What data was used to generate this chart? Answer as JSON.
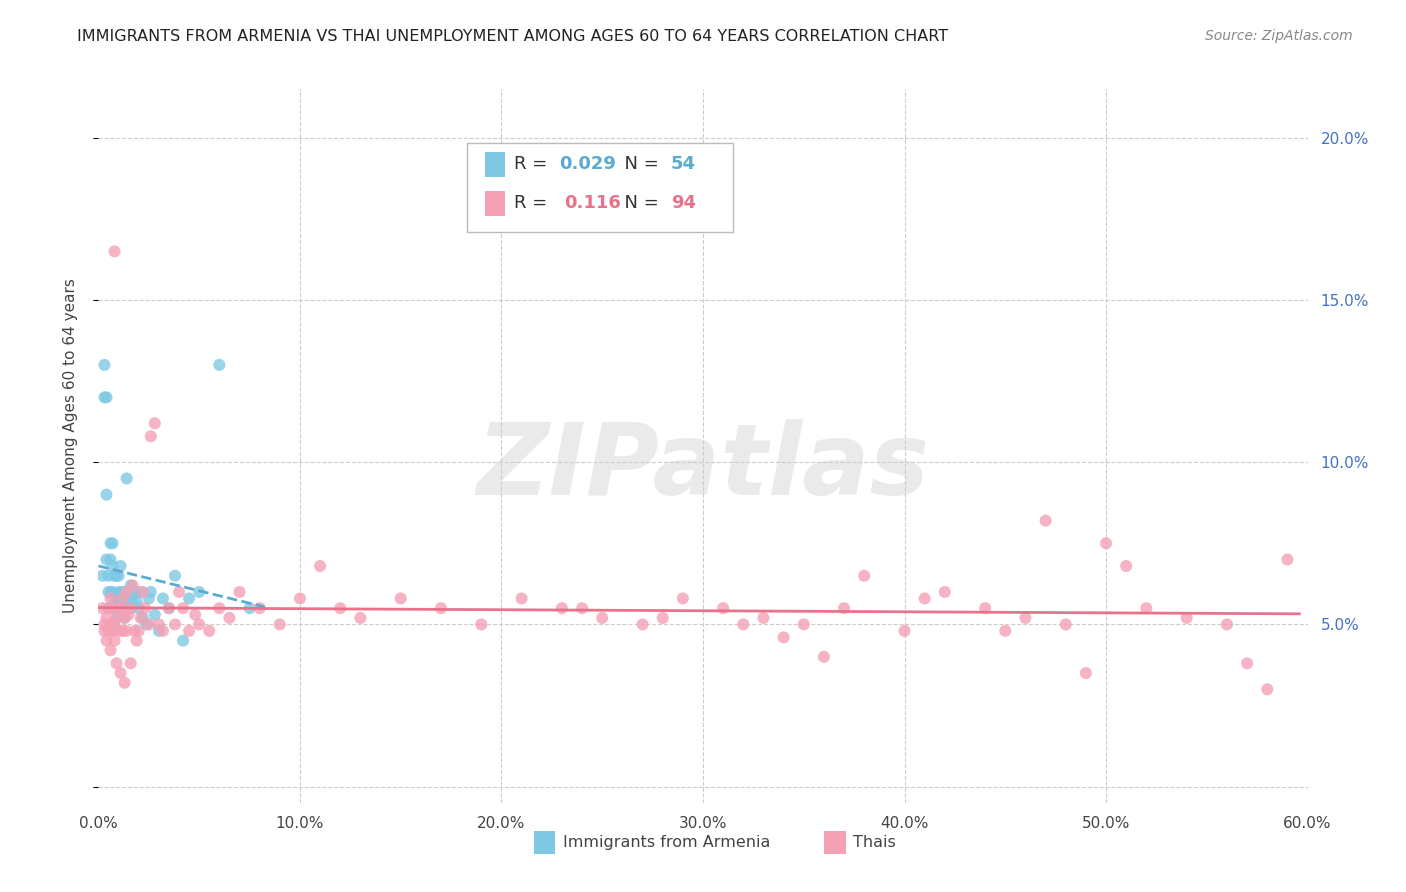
{
  "title": "IMMIGRANTS FROM ARMENIA VS THAI UNEMPLOYMENT AMONG AGES 60 TO 64 YEARS CORRELATION CHART",
  "source": "Source: ZipAtlas.com",
  "ylabel": "Unemployment Among Ages 60 to 64 years",
  "xlim": [
    0.0,
    0.6
  ],
  "ylim": [
    -0.005,
    0.215
  ],
  "xticks": [
    0.0,
    0.1,
    0.2,
    0.3,
    0.4,
    0.5,
    0.6
  ],
  "xticklabels": [
    "0.0%",
    "10.0%",
    "20.0%",
    "30.0%",
    "40.0%",
    "50.0%",
    "60.0%"
  ],
  "yticks_right": [
    0.05,
    0.1,
    0.15,
    0.2
  ],
  "yticklabels_right": [
    "5.0%",
    "10.0%",
    "15.0%",
    "20.0%"
  ],
  "color_armenia": "#7ec8e3",
  "color_thai": "#f4a0b5",
  "color_armenia_line": "#5aabcf",
  "color_thai_line": "#e8728a",
  "legend_r_armenia": "R = 0.029",
  "legend_n_armenia": "N = 54",
  "legend_r_thai": "R =  0.116",
  "legend_n_thai": "N = 94",
  "armenia_x": [
    0.002,
    0.003,
    0.003,
    0.004,
    0.004,
    0.004,
    0.005,
    0.005,
    0.005,
    0.006,
    0.006,
    0.006,
    0.007,
    0.007,
    0.007,
    0.008,
    0.008,
    0.008,
    0.009,
    0.009,
    0.009,
    0.01,
    0.01,
    0.01,
    0.011,
    0.011,
    0.012,
    0.012,
    0.013,
    0.013,
    0.014,
    0.014,
    0.015,
    0.016,
    0.016,
    0.017,
    0.018,
    0.019,
    0.02,
    0.021,
    0.022,
    0.024,
    0.025,
    0.026,
    0.028,
    0.03,
    0.032,
    0.035,
    0.038,
    0.042,
    0.045,
    0.05,
    0.06,
    0.075
  ],
  "armenia_y": [
    0.065,
    0.13,
    0.12,
    0.12,
    0.09,
    0.07,
    0.065,
    0.06,
    0.055,
    0.075,
    0.07,
    0.06,
    0.075,
    0.068,
    0.06,
    0.065,
    0.058,
    0.055,
    0.065,
    0.058,
    0.052,
    0.065,
    0.06,
    0.055,
    0.068,
    0.058,
    0.06,
    0.055,
    0.06,
    0.052,
    0.095,
    0.058,
    0.055,
    0.062,
    0.055,
    0.058,
    0.06,
    0.057,
    0.055,
    0.06,
    0.052,
    0.05,
    0.058,
    0.06,
    0.053,
    0.048,
    0.058,
    0.055,
    0.065,
    0.045,
    0.058,
    0.06,
    0.13,
    0.055
  ],
  "thai_x": [
    0.002,
    0.003,
    0.003,
    0.004,
    0.004,
    0.005,
    0.005,
    0.006,
    0.006,
    0.006,
    0.007,
    0.007,
    0.008,
    0.008,
    0.008,
    0.009,
    0.009,
    0.01,
    0.01,
    0.011,
    0.011,
    0.012,
    0.012,
    0.013,
    0.013,
    0.014,
    0.014,
    0.015,
    0.016,
    0.016,
    0.017,
    0.018,
    0.019,
    0.02,
    0.021,
    0.022,
    0.023,
    0.025,
    0.026,
    0.028,
    0.03,
    0.032,
    0.035,
    0.038,
    0.04,
    0.042,
    0.045,
    0.048,
    0.05,
    0.055,
    0.06,
    0.065,
    0.07,
    0.08,
    0.09,
    0.1,
    0.11,
    0.12,
    0.13,
    0.15,
    0.17,
    0.19,
    0.21,
    0.23,
    0.25,
    0.27,
    0.29,
    0.31,
    0.33,
    0.35,
    0.37,
    0.4,
    0.42,
    0.44,
    0.46,
    0.48,
    0.5,
    0.52,
    0.54,
    0.56,
    0.57,
    0.58,
    0.59,
    0.24,
    0.28,
    0.32,
    0.34,
    0.36,
    0.38,
    0.41,
    0.45,
    0.47,
    0.49,
    0.51
  ],
  "thai_y": [
    0.055,
    0.05,
    0.048,
    0.052,
    0.045,
    0.055,
    0.048,
    0.05,
    0.042,
    0.058,
    0.048,
    0.055,
    0.165,
    0.05,
    0.045,
    0.052,
    0.038,
    0.055,
    0.048,
    0.055,
    0.035,
    0.058,
    0.048,
    0.052,
    0.032,
    0.06,
    0.048,
    0.053,
    0.038,
    0.055,
    0.062,
    0.048,
    0.045,
    0.048,
    0.052,
    0.06,
    0.055,
    0.05,
    0.108,
    0.112,
    0.05,
    0.048,
    0.055,
    0.05,
    0.06,
    0.055,
    0.048,
    0.053,
    0.05,
    0.048,
    0.055,
    0.052,
    0.06,
    0.055,
    0.05,
    0.058,
    0.068,
    0.055,
    0.052,
    0.058,
    0.055,
    0.05,
    0.058,
    0.055,
    0.052,
    0.05,
    0.058,
    0.055,
    0.052,
    0.05,
    0.055,
    0.048,
    0.06,
    0.055,
    0.052,
    0.05,
    0.075,
    0.055,
    0.052,
    0.05,
    0.038,
    0.03,
    0.07,
    0.055,
    0.052,
    0.05,
    0.046,
    0.04,
    0.065,
    0.058,
    0.048,
    0.082,
    0.035,
    0.068
  ],
  "watermark": "ZIPatlas",
  "background_color": "#ffffff",
  "grid_color": "#cccccc"
}
